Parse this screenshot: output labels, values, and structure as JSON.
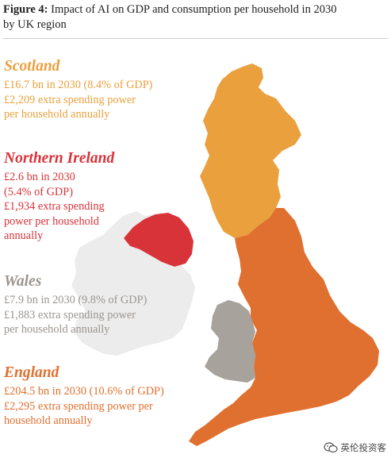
{
  "title": {
    "prefix": "Figure 4:",
    "line1": " Impact of AI on GDP and consumption per household in 2030",
    "line2": "by UK region"
  },
  "colors": {
    "scotland": "#eba03e",
    "northern_ireland": "#d9333a",
    "wales": "#a8a29c",
    "england": "#e0702f",
    "ireland": "#ececec",
    "wales_text": "#9b9590"
  },
  "regions": [
    {
      "name": "Scotland",
      "lines": [
        "£16.7 bn in 2030 (8.4% of GDP)",
        "£2,209 extra spending power",
        "per household annually"
      ]
    },
    {
      "name": "Northern Ireland",
      "lines": [
        "£2.6 bn in 2030",
        "(5.4% of GDP)",
        "£1,934 extra spending",
        "power per household",
        "annually"
      ]
    },
    {
      "name": "Wales",
      "lines": [
        "£7.9 bn in 2030 (9.8% of GDP)",
        "£1,883 extra spending power",
        "per household annually"
      ]
    },
    {
      "name": "England",
      "lines": [
        "£204.5 bn in 2030 (10.6% of GDP)",
        "£2,295 extra spending power per",
        "household annually"
      ]
    }
  ],
  "watermark": {
    "icon": "wechat-icon",
    "text": "英伦投资客"
  }
}
